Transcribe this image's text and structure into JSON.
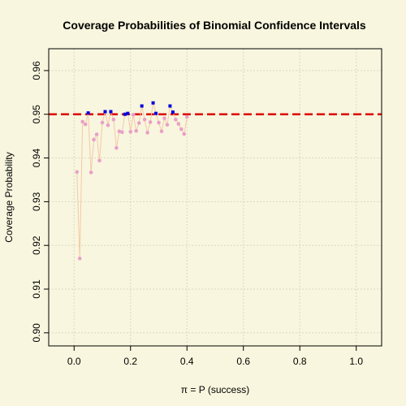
{
  "chart_data": {
    "type": "scatter",
    "title": "Coverage Probabilities of Binomial Confidence Intervals",
    "xlabel": "π = P (success)",
    "ylabel": "Coverage Probability",
    "xlim": [
      -0.09,
      1.09
    ],
    "ylim": [
      0.897,
      0.965
    ],
    "x_ticks": [
      "0.0",
      "0.2",
      "0.4",
      "0.6",
      "0.8",
      "1.0"
    ],
    "y_ticks": [
      "0.90",
      "0.91",
      "0.92",
      "0.93",
      "0.94",
      "0.95",
      "0.96"
    ],
    "grid": true,
    "reference_line": {
      "y": 0.95,
      "style": "dashed",
      "color": "#dd0000"
    },
    "colors": {
      "background": "#f8f6de",
      "line": "#f6c8a8",
      "below_points": "#e8a0c8",
      "above_points": "#0000dd",
      "grid": "#d8d8c0"
    },
    "series": [
      {
        "x": [
          0.01,
          0.02,
          0.03,
          0.04,
          0.05,
          0.06,
          0.07,
          0.08,
          0.09,
          0.1,
          0.11,
          0.12,
          0.13,
          0.14,
          0.15,
          0.16,
          0.17,
          0.18,
          0.19,
          0.2,
          0.21,
          0.22,
          0.23,
          0.24,
          0.25,
          0.26,
          0.27,
          0.28,
          0.29,
          0.3,
          0.31,
          0.32,
          0.33,
          0.34,
          0.35,
          0.36,
          0.37,
          0.38,
          0.39,
          0.4
        ],
        "y": [
          0.9368,
          0.917,
          0.9483,
          0.9477,
          0.9503,
          0.9367,
          0.9442,
          0.9454,
          0.9394,
          0.9481,
          0.9506,
          0.9475,
          0.9506,
          0.9488,
          0.9423,
          0.9461,
          0.9459,
          0.95,
          0.9502,
          0.946,
          0.9499,
          0.9462,
          0.948,
          0.9519,
          0.9488,
          0.9458,
          0.9482,
          0.9526,
          0.9502,
          0.9481,
          0.9461,
          0.9491,
          0.9476,
          0.9519,
          0.9505,
          0.9488,
          0.9478,
          0.9466,
          0.9455,
          0.9494
        ]
      }
    ]
  }
}
